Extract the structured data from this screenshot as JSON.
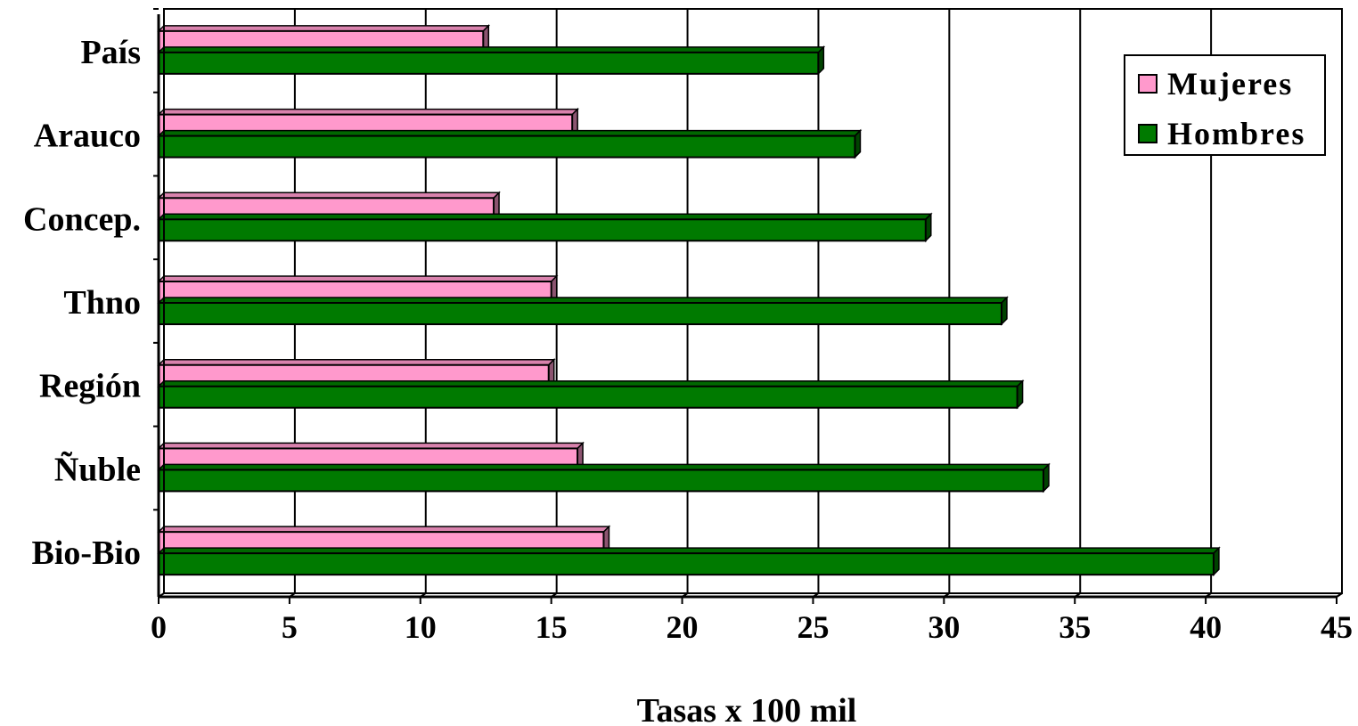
{
  "chart_data": {
    "type": "bar",
    "orientation": "horizontal",
    "categories": [
      "Bio-Bio",
      "Ñuble",
      "Región",
      "Thno",
      "Concep.",
      "Arauco",
      "País"
    ],
    "series": [
      {
        "name": "Mujeres",
        "color": "#ff99cc",
        "values": [
          17.0,
          16.0,
          14.9,
          15.0,
          12.8,
          15.8,
          12.4
        ]
      },
      {
        "name": "Hombres",
        "color": "#007a00",
        "values": [
          40.3,
          33.8,
          32.8,
          32.2,
          29.3,
          26.6,
          25.2
        ]
      }
    ],
    "xlabel": "Tasas x 100 mil",
    "ylabel": "",
    "xlim": [
      0,
      45
    ],
    "xticks": [
      "0",
      "5",
      "10",
      "15",
      "20",
      "25",
      "30",
      "35",
      "40",
      "45"
    ],
    "grid": "vertical",
    "legend": "top-right"
  }
}
